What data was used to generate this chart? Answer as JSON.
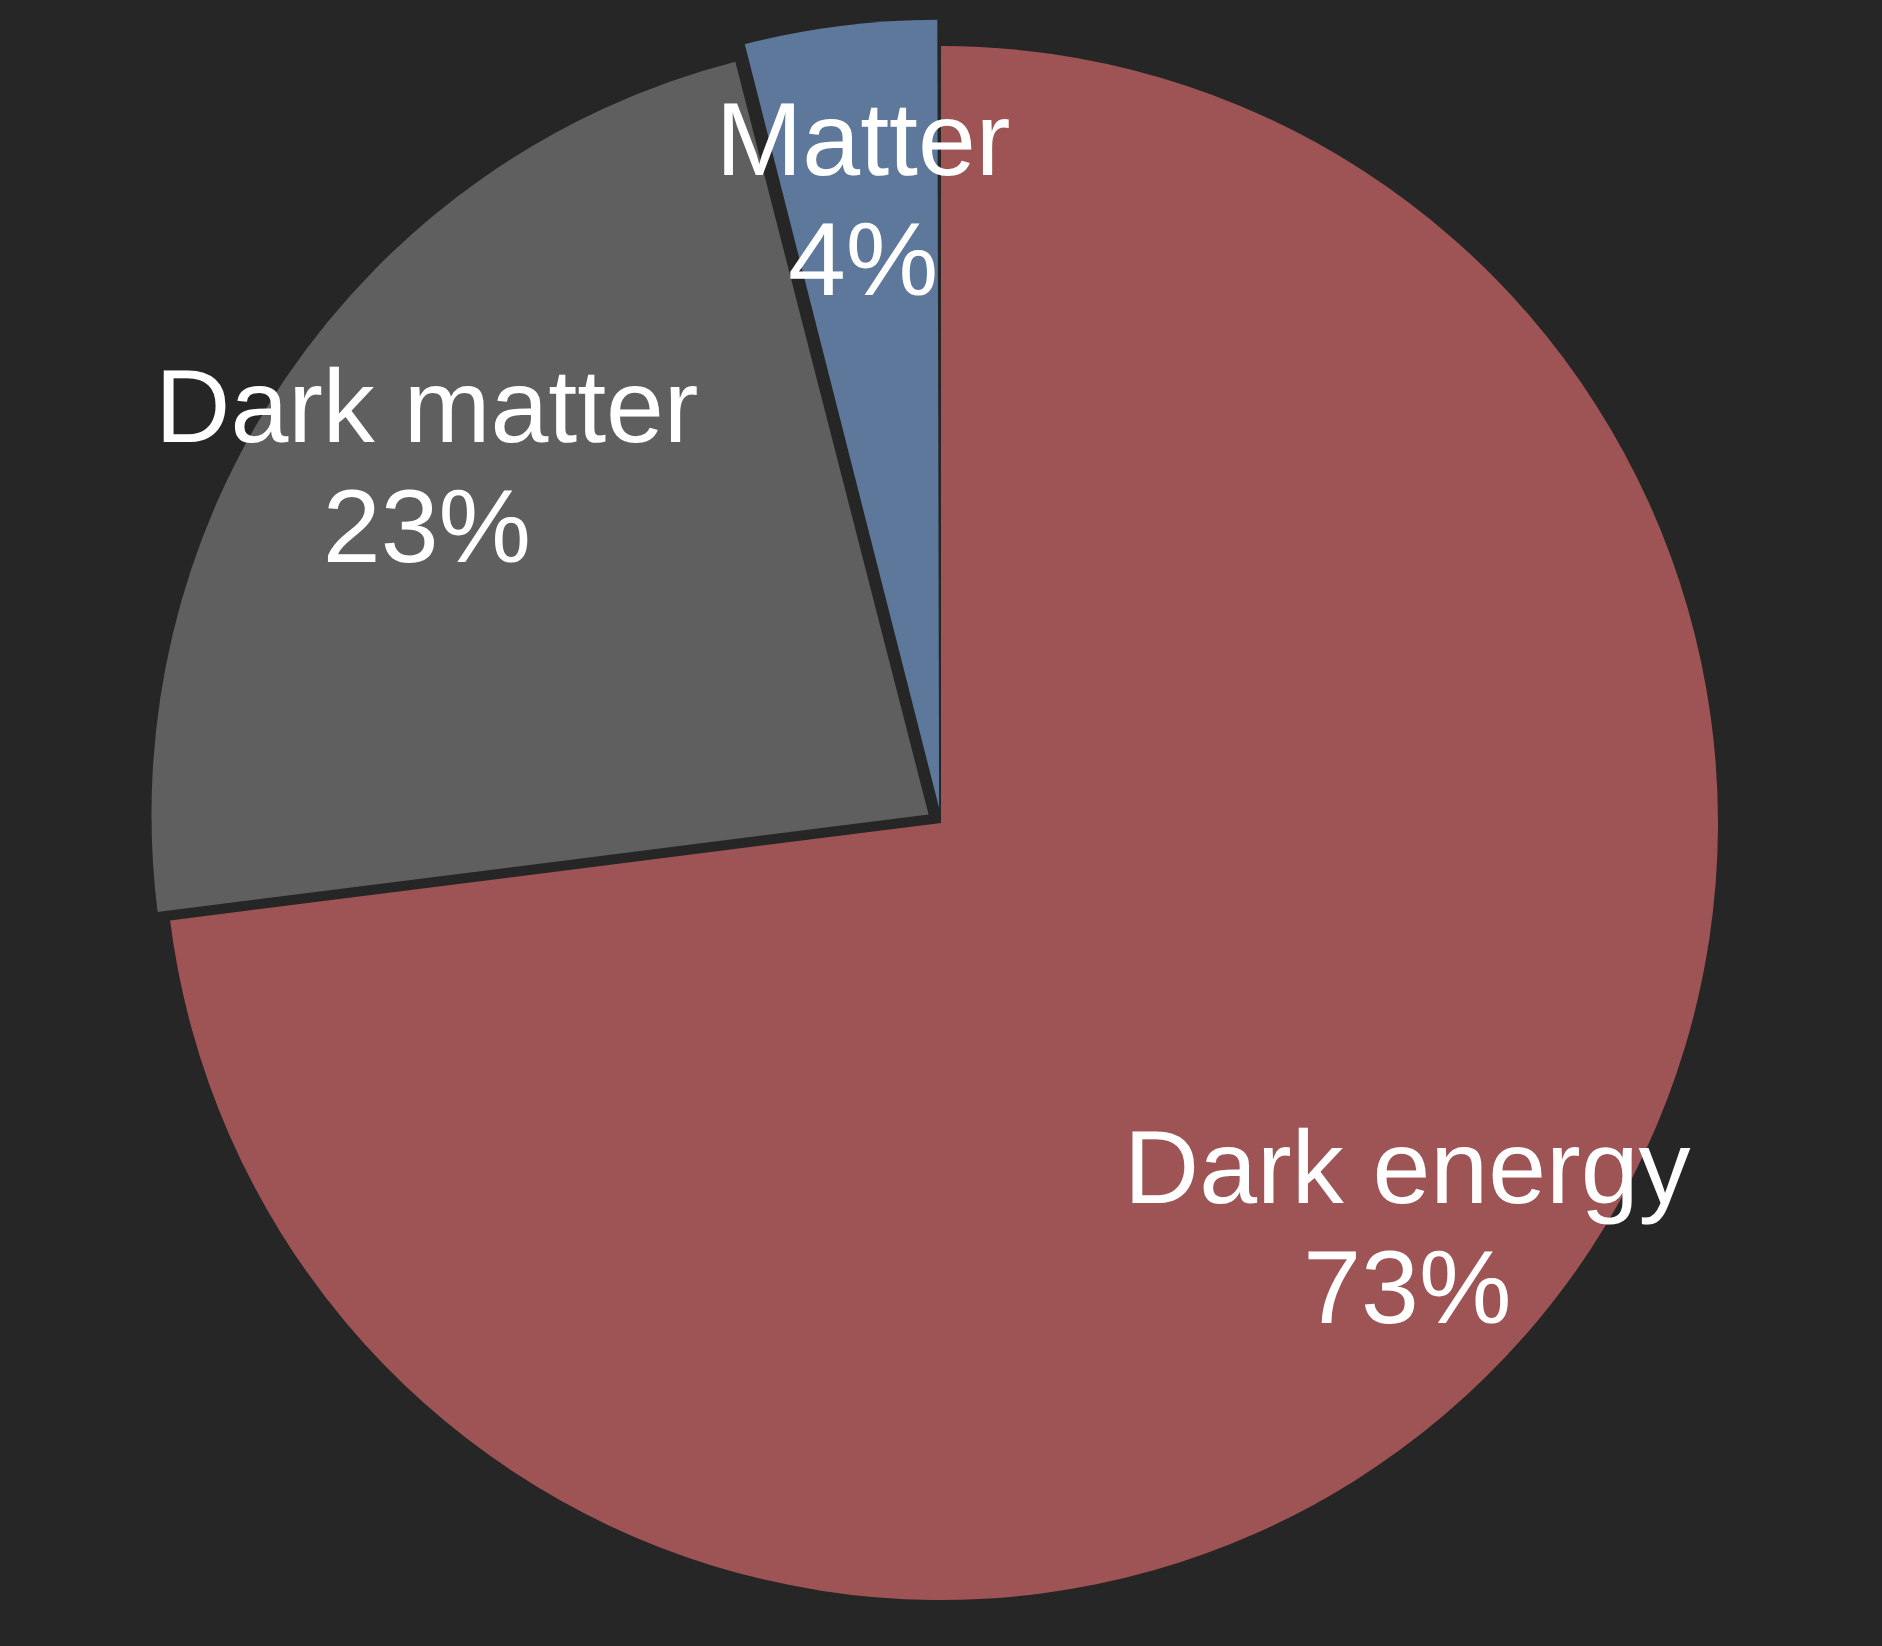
{
  "chart_data": {
    "type": "pie",
    "categories": [
      "Dark energy",
      "Dark matter",
      "Matter"
    ],
    "values": [
      73,
      23,
      4
    ],
    "colors": [
      "#9e5455",
      "#5f5f5f",
      "#5d789a"
    ],
    "value_labels": [
      "73%",
      "23%",
      "4%"
    ],
    "legend": false
  }
}
